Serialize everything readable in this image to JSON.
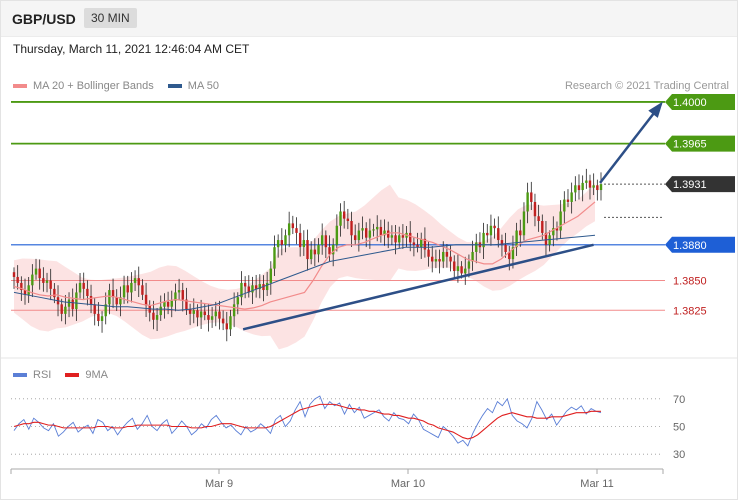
{
  "header": {
    "symbol": "GBP/USD",
    "timeframe": "30 MIN"
  },
  "datetime": "Thursday, March 11, 2021 12:46:04 AM CET",
  "legend": {
    "items": [
      {
        "label": "MA 20 + Bollinger Bands",
        "color": "#f28b8b"
      },
      {
        "label": "MA 50",
        "color": "#2f5a8e"
      }
    ],
    "credit": "Research © 2021 Trading Central"
  },
  "rsi_legend": {
    "items": [
      {
        "label": "RSI",
        "color": "#5b7fd6"
      },
      {
        "label": "9MA",
        "color": "#e02020"
      }
    ]
  },
  "colors": {
    "resistance": "#4c9a13",
    "support": "#1e5fd6",
    "current": "#333333",
    "support_light": "#f28b8b",
    "up_candle": "#4c9a13",
    "down_candle": "#c02020",
    "trendline": "#2d4f87",
    "band_fill": "#fbd9d9",
    "ma20": "#f28b8b",
    "ma50": "#2f5a8e"
  },
  "chart_data": [
    {
      "type": "candlestick",
      "title": "GBP/USD 30 MIN",
      "x_ticks": [
        "Mar 9",
        "Mar 10",
        "Mar 11"
      ],
      "ylim": [
        1.3795,
        1.4005
      ],
      "levels": [
        {
          "value": 1.4,
          "label": "1.4000",
          "kind": "resistance"
        },
        {
          "value": 1.3965,
          "label": "1.3965",
          "kind": "resistance"
        },
        {
          "value": 1.3931,
          "label": "1.3931",
          "kind": "current"
        },
        {
          "value": 1.388,
          "label": "1.3880",
          "kind": "pivot"
        },
        {
          "value": 1.385,
          "label": "1.3850",
          "kind": "support"
        },
        {
          "value": 1.3825,
          "label": "1.3825",
          "kind": "support"
        }
      ],
      "close_series": [
        1.3853,
        1.3848,
        1.3842,
        1.3838,
        1.3846,
        1.3855,
        1.386,
        1.3852,
        1.3848,
        1.385,
        1.3843,
        1.3836,
        1.383,
        1.3822,
        1.3828,
        1.3834,
        1.3826,
        1.384,
        1.3848,
        1.3843,
        1.3837,
        1.383,
        1.3822,
        1.3816,
        1.382,
        1.383,
        1.3842,
        1.3836,
        1.383,
        1.3836,
        1.3846,
        1.384,
        1.3848,
        1.3852,
        1.3846,
        1.3838,
        1.3829,
        1.3823,
        1.3817,
        1.3821,
        1.3828,
        1.3832,
        1.3828,
        1.3833,
        1.384,
        1.3842,
        1.3834,
        1.3826,
        1.3822,
        1.3825,
        1.3819,
        1.3824,
        1.3821,
        1.3817,
        1.382,
        1.3824,
        1.3818,
        1.3814,
        1.3809,
        1.382,
        1.383,
        1.3836,
        1.3848,
        1.3845,
        1.384,
        1.3846,
        1.3843,
        1.3847,
        1.3842,
        1.3848,
        1.386,
        1.3878,
        1.3884,
        1.388,
        1.3888,
        1.3898,
        1.3894,
        1.389,
        1.3878,
        1.3884,
        1.3868,
        1.3876,
        1.3872,
        1.388,
        1.3888,
        1.3878,
        1.3872,
        1.388,
        1.3896,
        1.3908,
        1.3902,
        1.39,
        1.3888,
        1.3884,
        1.3892,
        1.3894,
        1.3886,
        1.3892,
        1.3893,
        1.3895,
        1.3888,
        1.3892,
        1.3886,
        1.3888,
        1.3882,
        1.3888,
        1.3886,
        1.389,
        1.3882,
        1.388,
        1.3878,
        1.3885,
        1.3876,
        1.387,
        1.3866,
        1.3868,
        1.3866,
        1.3874,
        1.387,
        1.3866,
        1.3858,
        1.3862,
        1.3856,
        1.386,
        1.3866,
        1.3874,
        1.3882,
        1.3878,
        1.389,
        1.3888,
        1.3896,
        1.3894,
        1.3884,
        1.388,
        1.3874,
        1.3868,
        1.3878,
        1.3892,
        1.3888,
        1.3908,
        1.3924,
        1.3916,
        1.3904,
        1.39,
        1.389,
        1.388,
        1.3888,
        1.3894,
        1.3892,
        1.3908,
        1.3918,
        1.3916,
        1.3924,
        1.393,
        1.3926,
        1.3932,
        1.3934,
        1.3928,
        1.393,
        1.3926,
        1.3931
      ],
      "ma20": [
        1.3845,
        1.3843,
        1.384,
        1.3838,
        1.3837,
        1.3838,
        1.3836,
        1.3835,
        1.3834,
        1.3835,
        1.3836,
        1.3837,
        1.3836,
        1.3834,
        1.3832,
        1.383,
        1.3829,
        1.3831,
        1.3833,
        1.3834,
        1.3833,
        1.3832,
        1.3831,
        1.383,
        1.3829,
        1.3828,
        1.3827,
        1.3826,
        1.3827,
        1.3829,
        1.3832,
        1.3834,
        1.3836,
        1.3838,
        1.384,
        1.385,
        1.3862,
        1.3872,
        1.3878,
        1.388,
        1.388,
        1.3882,
        1.3885,
        1.3888,
        1.389,
        1.389,
        1.3888,
        1.3886,
        1.3884,
        1.3882,
        1.3879,
        1.3876,
        1.3872,
        1.3868,
        1.3866,
        1.3864,
        1.3864,
        1.3868,
        1.3874,
        1.388,
        1.3884,
        1.3886,
        1.3888,
        1.3892,
        1.3896,
        1.39,
        1.3904,
        1.391,
        1.3916
      ],
      "ma50": [
        1.384,
        1.3838,
        1.3836,
        1.3834,
        1.3832,
        1.3831,
        1.383,
        1.3829,
        1.3828,
        1.3828,
        1.3827,
        1.3826,
        1.3826,
        1.3825,
        1.3826,
        1.3828,
        1.383,
        1.3834,
        1.3838,
        1.3842,
        1.3846,
        1.385,
        1.3854,
        1.3858,
        1.3862,
        1.3866,
        1.3868,
        1.387,
        1.3872,
        1.3874,
        1.3876,
        1.3878,
        1.3878,
        1.3878,
        1.3879,
        1.388,
        1.388,
        1.388,
        1.388,
        1.3881,
        1.3882,
        1.3883,
        1.3884,
        1.3885,
        1.3886,
        1.3887,
        1.3888
      ],
      "trendlines": [
        {
          "from": [
            0.353,
            1.3809
          ],
          "to": [
            0.893,
            1.388
          ]
        },
        {
          "from": [
            0.903,
            1.3932
          ],
          "to": [
            1.0,
            1.4
          ],
          "arrow": true
        }
      ]
    },
    {
      "type": "line",
      "title": "RSI",
      "ylim": [
        20,
        80
      ],
      "y_ticks": [
        70,
        50,
        30
      ],
      "series": [
        {
          "name": "RSI",
          "values": [
            47,
            52,
            55,
            48,
            56,
            53,
            49,
            47,
            52,
            43,
            46,
            50,
            53,
            46,
            49,
            51,
            45,
            55,
            53,
            47,
            50,
            44,
            49,
            53,
            56,
            48,
            52,
            58,
            50,
            47,
            52,
            55,
            45,
            49,
            54,
            50,
            44,
            47,
            52,
            49,
            55,
            58,
            53,
            49,
            51,
            47,
            44,
            50,
            46,
            48,
            52,
            49,
            45,
            55,
            58,
            50,
            54,
            62,
            68,
            57,
            66,
            70,
            72,
            63,
            68,
            65,
            67,
            59,
            66,
            60,
            64,
            56,
            58,
            60,
            62,
            57,
            54,
            60,
            56,
            55,
            52,
            59,
            55,
            48,
            46,
            44,
            42,
            50,
            47,
            43,
            38,
            40,
            36,
            45,
            52,
            58,
            63,
            60,
            68,
            65,
            70,
            58,
            54,
            52,
            49,
            56,
            68,
            62,
            55,
            59,
            51,
            56,
            61,
            64,
            62,
            65,
            59,
            63,
            61,
            60
          ]
        },
        {
          "name": "9MA",
          "values": [
            50,
            51,
            52,
            52,
            53,
            53,
            52,
            51,
            51,
            50,
            49,
            49,
            49,
            49,
            49,
            49,
            49,
            50,
            50,
            50,
            49,
            49,
            49,
            50,
            50,
            51,
            51,
            51,
            51,
            51,
            51,
            51,
            50,
            50,
            50,
            50,
            49,
            49,
            49,
            50,
            50,
            51,
            52,
            52,
            52,
            51,
            50,
            49,
            49,
            49,
            49,
            49,
            50,
            52,
            54,
            56,
            58,
            60,
            62,
            63,
            64,
            65,
            66,
            66,
            66,
            66,
            65,
            64,
            63,
            63,
            62,
            62,
            61,
            61,
            60,
            59,
            59,
            58,
            58,
            57,
            56,
            56,
            55,
            54,
            52,
            51,
            49,
            48,
            47,
            46,
            44,
            42,
            41,
            42,
            44,
            47,
            50,
            53,
            56,
            58,
            59,
            60,
            59,
            58,
            57,
            57,
            56,
            56,
            56,
            57,
            57,
            57,
            58,
            59,
            60,
            60,
            60,
            61,
            61,
            61
          ]
        }
      ]
    }
  ]
}
